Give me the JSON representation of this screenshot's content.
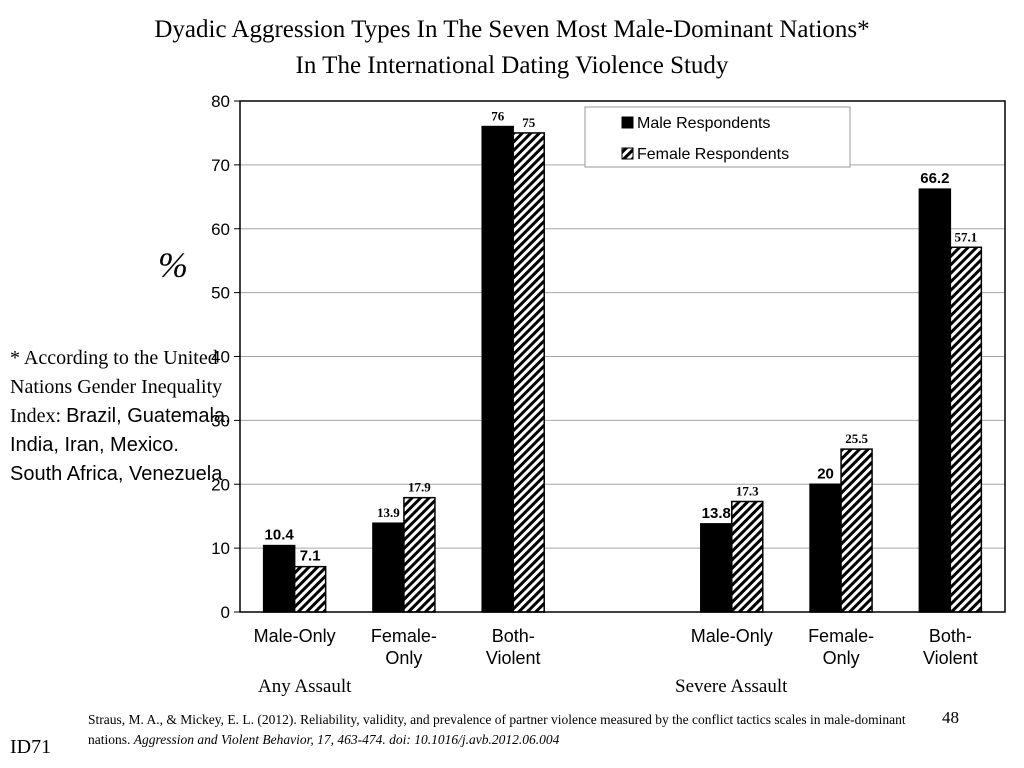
{
  "title_line1": "Dyadic Aggression Types In The Seven Most Male-Dominant Nations*",
  "title_line2": "In The International Dating Violence Study",
  "note": {
    "serif_part": "* According to the United Nations Gender Inequality Index: ",
    "sans_part": "Brazil, Guatemala, India, Iran, Mexico. South Africa, Venezuela"
  },
  "group_labels": [
    "Any Assault",
    "Severe Assault"
  ],
  "citation": {
    "plain": "Straus, M. A., & Mickey, E. L. (2012). Reliability, validity, and prevalence of partner violence measured by the conflict tactics scales in male-dominant nations. ",
    "italic": "Aggression and Violent Behavior, 17, 463-474. doi: 10.1016/j.avb.2012.06.004"
  },
  "slide_number": "48",
  "slide_id": "ID71",
  "chart_data": {
    "type": "bar",
    "ylabel": "%",
    "ylim": [
      0,
      80
    ],
    "yticks": [
      0,
      10,
      20,
      30,
      40,
      50,
      60,
      70,
      80
    ],
    "categories": [
      [
        "Male-Only"
      ],
      [
        "Female-",
        "Only"
      ],
      [
        "Both-",
        "Violent"
      ],
      [
        "Male-Only"
      ],
      [
        "Female-",
        "Only"
      ],
      [
        "Both-",
        "Violent"
      ]
    ],
    "groups": [
      "Any Assault",
      "Severe Assault"
    ],
    "series": [
      {
        "name": "Male Respondents",
        "pattern": "solid",
        "values": [
          10.4,
          13.9,
          76,
          13.8,
          20,
          66.2
        ],
        "labels": [
          "10.4",
          "13.9",
          "76",
          "13.8",
          "20",
          "66.2"
        ],
        "label_fonts": [
          "sans",
          "serif",
          "serif",
          "sans",
          "sans",
          "sans"
        ]
      },
      {
        "name": "Female Respondents",
        "pattern": "hatched",
        "values": [
          7.1,
          17.9,
          75,
          17.3,
          25.5,
          57.1
        ],
        "labels": [
          "7.1",
          "17.9",
          "75",
          "17.3",
          "25.5",
          "57.1"
        ],
        "label_fonts": [
          "sans",
          "serif",
          "serif",
          "serif",
          "serif",
          "serif"
        ]
      }
    ],
    "grid": true,
    "legend_position": "top-right",
    "colors": {
      "male": "#000000",
      "female_hatch": "#000000",
      "grid": "#a6a6a6"
    }
  }
}
